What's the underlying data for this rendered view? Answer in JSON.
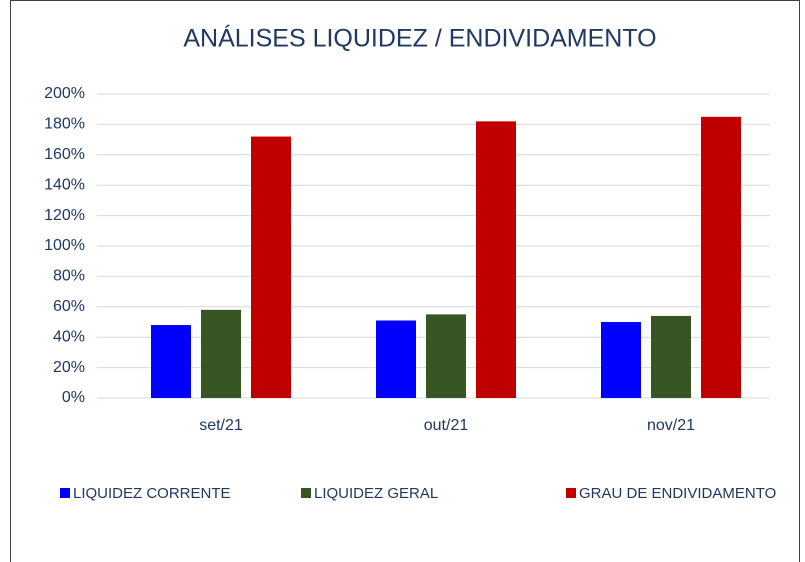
{
  "chart_data": {
    "type": "bar",
    "title": "ANÁLISES LIQUIDEZ / ENDIVIDAMENTO",
    "categories": [
      "set/21",
      "out/21",
      "nov/21"
    ],
    "series": [
      {
        "name": "LIQUIDEZ CORRENTE",
        "color": "#0000ff",
        "values": [
          48,
          51,
          50
        ]
      },
      {
        "name": "LIQUIDEZ GERAL",
        "color": "#375623",
        "values": [
          58,
          55,
          54
        ]
      },
      {
        "name": "GRAU DE ENDIVIDAMENTO",
        "color": "#c00000",
        "values": [
          172,
          182,
          185
        ]
      }
    ],
    "ylim": [
      0,
      200
    ],
    "yticks": [
      {
        "value": 0,
        "label": "0%"
      },
      {
        "value": 20,
        "label": "20%"
      },
      {
        "value": 40,
        "label": "40%"
      },
      {
        "value": 60,
        "label": "60%"
      },
      {
        "value": 80,
        "label": "80%"
      },
      {
        "value": 100,
        "label": "100%"
      },
      {
        "value": 120,
        "label": "120%"
      },
      {
        "value": 140,
        "label": "140%"
      },
      {
        "value": 160,
        "label": "160%"
      },
      {
        "value": 180,
        "label": "180%"
      },
      {
        "value": 200,
        "label": "200%"
      }
    ],
    "grid": true,
    "legend": "bottom"
  }
}
